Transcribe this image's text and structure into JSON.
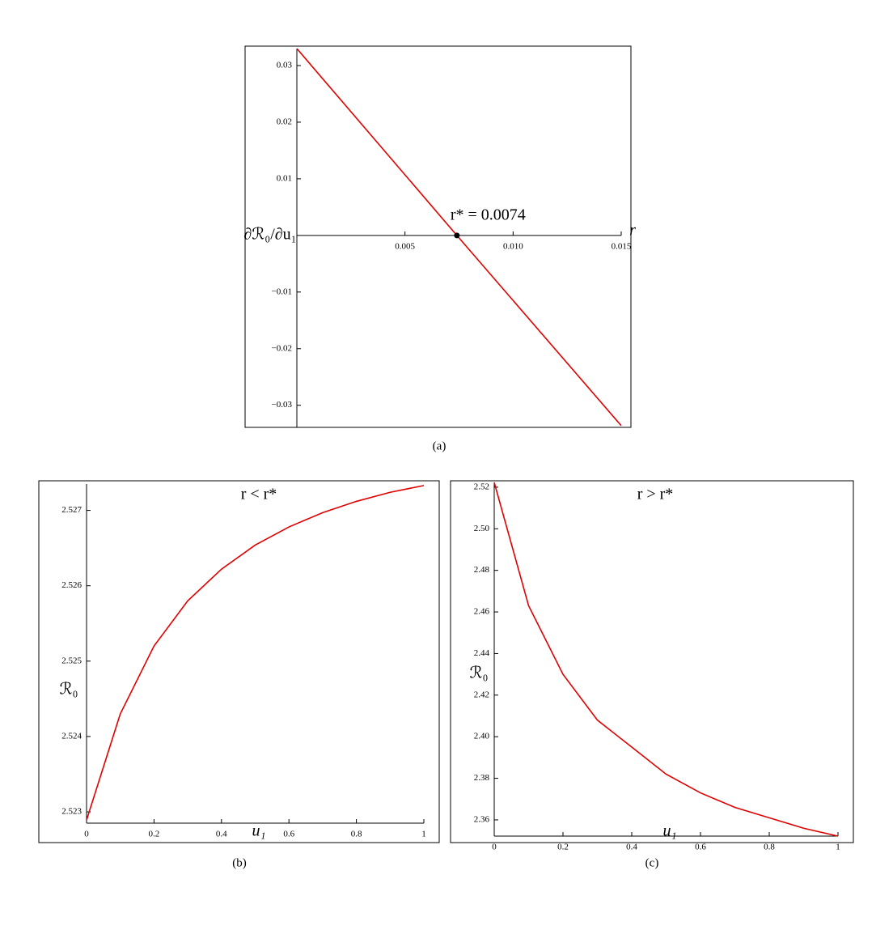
{
  "chart_data": [
    {
      "type": "line",
      "caption": "(a)",
      "xlabel": "r",
      "ylabel": "∂ℛ₀/∂u₁",
      "xlim": [
        0,
        0.015
      ],
      "ylim": [
        -0.0339,
        0.033
      ],
      "xticks": [
        0.005,
        {
          "value": 0.01,
          "label": "0.010"
        },
        0.015
      ],
      "yticks": [
        {
          "value": -0.03,
          "label": "−0.03"
        },
        {
          "value": -0.02,
          "label": "−0.02"
        },
        {
          "value": -0.01,
          "label": "−0.01"
        },
        0.01,
        0.02,
        0.03
      ],
      "x": [
        0,
        0.0074,
        0.015
      ],
      "series": [
        {
          "color": "#e00000",
          "values": [
            0.033,
            0,
            -0.0336
          ]
        }
      ],
      "annotations": [
        {
          "text": "r* = 0.0074",
          "x": 0.0074,
          "y": 0
        }
      ]
    },
    {
      "type": "line",
      "caption": "(b)",
      "xlabel": "u₁",
      "ylabel": "ℛ₀",
      "xlim": [
        0,
        1
      ],
      "ylim": [
        2.52285,
        2.52735
      ],
      "xticks": [
        0,
        0.2,
        0.4,
        0.6,
        0.8,
        1
      ],
      "yticks": [
        2.523,
        2.524,
        2.525,
        2.526,
        2.527
      ],
      "x": [
        0,
        0.1,
        0.2,
        0.3,
        0.4,
        0.5,
        0.6,
        0.7,
        0.8,
        0.9,
        1
      ],
      "series": [
        {
          "color": "#e00000",
          "values": [
            2.52289,
            2.5243,
            2.5252,
            2.5258,
            2.52622,
            2.52654,
            2.52678,
            2.52697,
            2.52712,
            2.52724,
            2.52733
          ]
        }
      ],
      "annotations": [
        {
          "text": "r < r*"
        }
      ]
    },
    {
      "type": "line",
      "caption": "(c)",
      "xlabel": "u₁",
      "ylabel": "ℛ₀",
      "xlim": [
        0,
        1
      ],
      "ylim": [
        2.3522,
        2.5223
      ],
      "xticks": [
        0,
        0.2,
        0.4,
        0.6,
        0.8,
        1
      ],
      "yticks": [
        2.36,
        2.38,
        {
          "value": 2.4,
          "label": "2.40"
        },
        2.42,
        2.44,
        2.46,
        2.48,
        {
          "value": 2.5,
          "label": "2.50"
        },
        2.52
      ],
      "x": [
        0,
        0.1,
        0.2,
        0.3,
        0.4,
        0.5,
        0.6,
        0.7,
        0.8,
        0.9,
        1
      ],
      "series": [
        {
          "color": "#e00000",
          "values": [
            2.5223,
            2.463,
            2.43,
            2.408,
            2.395,
            2.382,
            2.373,
            2.366,
            2.361,
            2.356,
            2.3522
          ]
        }
      ],
      "annotations": [
        {
          "text": "r > r*"
        }
      ]
    }
  ]
}
